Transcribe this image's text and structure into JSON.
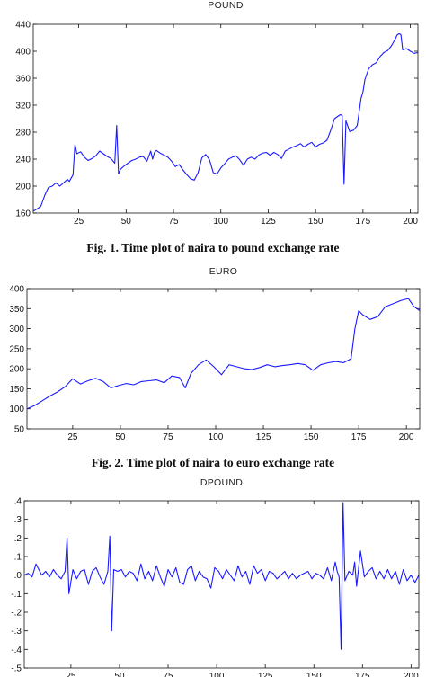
{
  "chart_data": [
    {
      "type": "line",
      "title": "POUND",
      "caption": "Fig. 1. Time plot of naira to pound exchange rate",
      "xlim": [
        1,
        204
      ],
      "ylim": [
        160,
        440
      ],
      "xticks": [
        25,
        50,
        75,
        100,
        125,
        150,
        175,
        200
      ],
      "yticks": [
        160,
        200,
        240,
        280,
        320,
        360,
        400,
        440
      ],
      "ytick_labels": [
        "160",
        "200",
        "240",
        "280",
        "320",
        "360",
        "400",
        "440"
      ],
      "line_color": "#1a1aff",
      "series": [
        {
          "x": [
            1,
            3,
            5,
            7,
            9,
            11,
            13,
            15,
            17,
            19,
            20,
            22,
            23,
            24,
            26,
            28,
            30,
            32,
            34,
            36,
            38,
            40,
            42,
            44,
            45,
            46,
            47,
            49,
            51,
            53,
            55,
            57,
            59,
            61,
            63,
            64,
            65,
            66,
            68,
            70,
            72,
            74,
            76,
            78,
            80,
            82,
            84,
            86,
            88,
            90,
            92,
            94,
            96,
            98,
            100,
            102,
            104,
            106,
            108,
            110,
            112,
            114,
            116,
            118,
            120,
            122,
            124,
            126,
            128,
            130,
            132,
            134,
            136,
            138,
            140,
            142,
            144,
            146,
            148,
            150,
            152,
            154,
            156,
            158,
            160,
            162,
            163,
            164,
            165,
            166,
            168,
            170,
            172,
            174,
            175,
            176,
            178,
            180,
            182,
            184,
            186,
            188,
            190,
            192,
            193,
            194,
            195,
            196,
            198,
            200,
            202,
            204
          ],
          "y": [
            163,
            166,
            170,
            186,
            198,
            200,
            205,
            200,
            205,
            210,
            207,
            217,
            262,
            248,
            251,
            243,
            238,
            241,
            245,
            252,
            248,
            244,
            241,
            234,
            290,
            218,
            225,
            230,
            234,
            238,
            240,
            243,
            244,
            237,
            252,
            240,
            250,
            253,
            249,
            246,
            243,
            237,
            229,
            232,
            224,
            217,
            211,
            209,
            220,
            242,
            247,
            239,
            220,
            218,
            227,
            233,
            240,
            243,
            245,
            239,
            231,
            240,
            243,
            240,
            246,
            249,
            250,
            246,
            250,
            247,
            241,
            252,
            255,
            258,
            260,
            263,
            258,
            262,
            265,
            258,
            262,
            264,
            268,
            283,
            300,
            304,
            306,
            305,
            203,
            297,
            281,
            283,
            290,
            330,
            340,
            358,
            374,
            380,
            383,
            392,
            398,
            401,
            408,
            418,
            424,
            426,
            425,
            402,
            404,
            400,
            397,
            398
          ]
        }
      ]
    },
    {
      "type": "line",
      "title": "EURO",
      "caption": "Fig. 2. Time plot of naira to euro exchange rate",
      "xlim": [
        1,
        207
      ],
      "ylim": [
        50,
        400
      ],
      "xticks": [
        25,
        50,
        75,
        100,
        125,
        150,
        175,
        200
      ],
      "yticks": [
        50,
        100,
        150,
        200,
        250,
        300,
        350,
        400
      ],
      "ytick_labels": [
        "50",
        "100",
        "150",
        "200",
        "250",
        "300",
        "350",
        "400"
      ],
      "line_color": "#1a1aff",
      "series": [
        {
          "x": [
            1,
            5,
            9,
            13,
            17,
            21,
            25,
            29,
            33,
            37,
            41,
            45,
            49,
            53,
            57,
            61,
            65,
            69,
            73,
            77,
            81,
            84,
            87,
            91,
            95,
            99,
            103,
            107,
            111,
            115,
            119,
            123,
            127,
            131,
            135,
            139,
            143,
            147,
            151,
            155,
            159,
            163,
            167,
            171,
            173,
            175,
            177,
            181,
            185,
            189,
            193,
            197,
            201,
            204,
            207
          ],
          "y": [
            100,
            108,
            120,
            132,
            142,
            155,
            175,
            162,
            170,
            176,
            168,
            152,
            158,
            163,
            160,
            168,
            170,
            172,
            165,
            182,
            178,
            152,
            188,
            210,
            222,
            205,
            185,
            210,
            205,
            200,
            198,
            203,
            210,
            205,
            208,
            210,
            213,
            210,
            196,
            210,
            215,
            218,
            215,
            225,
            300,
            345,
            335,
            323,
            330,
            355,
            362,
            370,
            375,
            355,
            345
          ]
        }
      ]
    },
    {
      "type": "line",
      "title": "DPOUND",
      "xlim": [
        1,
        204
      ],
      "ylim": [
        -0.5,
        0.4
      ],
      "xticks": [
        25,
        50,
        75,
        100,
        125,
        150,
        175,
        200
      ],
      "yticks": [
        -0.5,
        -0.4,
        -0.3,
        -0.2,
        -0.1,
        0.0,
        0.1,
        0.2,
        0.3,
        0.4
      ],
      "ytick_labels": [
        "-.5",
        "-.4",
        "-.3",
        "-.2",
        "-.1",
        ".0",
        ".1",
        ".2",
        ".3",
        ".4"
      ],
      "line_color": "#1a1aff",
      "series": [
        {
          "x": [
            1,
            3,
            5,
            7,
            8,
            10,
            12,
            14,
            16,
            18,
            20,
            22,
            23,
            24,
            26,
            28,
            30,
            32,
            34,
            36,
            38,
            40,
            42,
            44,
            45,
            46,
            47,
            49,
            51,
            53,
            55,
            57,
            59,
            61,
            63,
            65,
            67,
            69,
            71,
            73,
            75,
            77,
            79,
            81,
            83,
            85,
            87,
            89,
            91,
            93,
            95,
            97,
            99,
            101,
            103,
            105,
            107,
            109,
            111,
            113,
            115,
            117,
            119,
            121,
            123,
            125,
            127,
            129,
            131,
            133,
            135,
            137,
            139,
            141,
            143,
            145,
            147,
            149,
            151,
            153,
            155,
            157,
            159,
            161,
            162,
            163,
            164,
            165,
            166,
            168,
            170,
            171,
            172,
            174,
            176,
            178,
            180,
            182,
            184,
            186,
            188,
            190,
            192,
            194,
            196,
            198,
            200,
            202,
            204
          ],
          "y": [
            0.0,
            0.01,
            -0.01,
            0.06,
            0.04,
            0.0,
            0.02,
            -0.01,
            0.03,
            0.0,
            -0.02,
            0.02,
            0.2,
            -0.1,
            0.03,
            -0.02,
            0.02,
            0.03,
            -0.05,
            0.02,
            0.04,
            -0.01,
            -0.05,
            0.02,
            0.21,
            -0.3,
            0.03,
            0.02,
            0.03,
            -0.01,
            0.02,
            0.01,
            -0.03,
            0.06,
            -0.02,
            0.02,
            -0.03,
            0.05,
            -0.01,
            -0.06,
            0.03,
            -0.01,
            0.04,
            -0.04,
            -0.05,
            0.03,
            0.05,
            -0.03,
            0.02,
            -0.01,
            -0.02,
            -0.07,
            0.04,
            0.02,
            -0.02,
            0.03,
            0.0,
            -0.03,
            0.05,
            -0.01,
            0.02,
            -0.05,
            0.05,
            0.01,
            0.03,
            -0.03,
            0.02,
            0.01,
            -0.02,
            0.0,
            0.02,
            -0.02,
            0.01,
            -0.02,
            0.0,
            0.01,
            0.02,
            -0.02,
            0.01,
            0.0,
            -0.02,
            0.04,
            -0.03,
            0.07,
            0.02,
            -0.01,
            -0.4,
            0.39,
            -0.03,
            0.02,
            0.0,
            0.07,
            -0.06,
            0.13,
            -0.01,
            0.02,
            0.04,
            -0.02,
            0.02,
            -0.02,
            0.03,
            -0.02,
            0.02,
            -0.05,
            0.03,
            -0.03,
            0.0,
            -0.04,
            0.0
          ]
        }
      ]
    }
  ]
}
